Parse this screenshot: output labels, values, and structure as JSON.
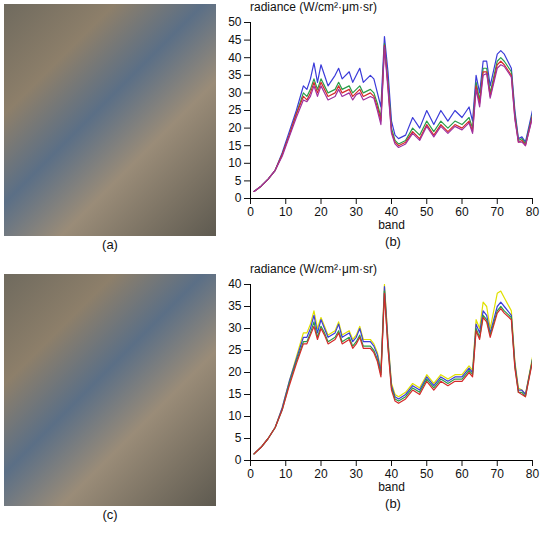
{
  "chart_data": [
    {
      "type": "line",
      "ylabel": "radiance (W/cm²·μm·sr)",
      "xlabel": "band",
      "caption": "(b)",
      "x": [
        1,
        3,
        5,
        7,
        9,
        11,
        13,
        15,
        16,
        17,
        18,
        19,
        20,
        21,
        22,
        24,
        25,
        26,
        28,
        29,
        30,
        31,
        32,
        34,
        35,
        36,
        37,
        38,
        39,
        40,
        41,
        42,
        44,
        46,
        48,
        50,
        52,
        54,
        56,
        58,
        60,
        62,
        63,
        64,
        65,
        66,
        67,
        68,
        70,
        71,
        72,
        74,
        75,
        76,
        77,
        78,
        80
      ],
      "xlim": [
        0,
        80
      ],
      "xticks": [
        0,
        10,
        20,
        30,
        40,
        50,
        60,
        70,
        80
      ],
      "ylim": [
        0,
        50
      ],
      "yticks": [
        0,
        5,
        10,
        15,
        20,
        25,
        30,
        35,
        40,
        45,
        50
      ],
      "series": [
        {
          "color": "#3b3bd9",
          "values": [
            2,
            3.5,
            5.5,
            8,
            13,
            19,
            25,
            32,
            31,
            34,
            38.5,
            33,
            38,
            35,
            32,
            35,
            37,
            34,
            36,
            33,
            35,
            37,
            33,
            35,
            34,
            30,
            26,
            46,
            36,
            22,
            18,
            17,
            18,
            23,
            20,
            25,
            21,
            25,
            22,
            25,
            23,
            26,
            22,
            35,
            30,
            39,
            39,
            32,
            41,
            42,
            41,
            37,
            25,
            17,
            17.5,
            16,
            25
          ]
        },
        {
          "color": "#2a9d4a",
          "values": [
            2,
            3.5,
            5.5,
            8,
            12.5,
            18,
            24,
            30,
            29,
            31,
            34,
            31,
            34,
            32,
            30,
            31,
            33,
            31,
            32,
            30,
            31,
            32,
            30,
            31,
            30,
            27,
            23,
            44,
            33,
            20,
            16.5,
            15.5,
            16.5,
            20,
            18,
            22,
            19,
            22,
            20,
            22,
            21,
            23,
            20,
            33,
            28,
            37,
            37,
            30,
            39,
            40,
            39,
            36,
            24,
            16.5,
            17,
            15.5,
            24
          ]
        },
        {
          "color": "#d42a2a",
          "values": [
            2,
            3.5,
            5.5,
            8,
            12.5,
            18,
            24,
            29,
            28,
            30,
            33,
            30,
            33,
            31,
            29,
            30,
            32,
            30,
            31,
            29,
            30,
            31,
            29,
            30,
            29,
            26,
            22,
            43.5,
            32,
            19,
            16,
            15,
            16,
            19,
            17,
            21,
            18,
            21,
            19,
            21,
            20,
            22,
            19,
            32,
            27,
            36,
            36,
            29,
            38,
            39,
            38,
            35,
            23,
            16,
            16.5,
            15,
            23.5
          ]
        },
        {
          "color": "#a030a0",
          "values": [
            2,
            3.5,
            5.5,
            8,
            12,
            17.5,
            23,
            28,
            27.5,
            29,
            32,
            29,
            32,
            30,
            28,
            29,
            31,
            29,
            30,
            28,
            29.5,
            30,
            28,
            29,
            28.5,
            25,
            21,
            43,
            31,
            18.5,
            15.5,
            14.5,
            15.5,
            18.5,
            16.5,
            20.5,
            17.5,
            20.5,
            18.5,
            20.5,
            19.5,
            21.5,
            18.5,
            31,
            26,
            35,
            35.5,
            28.5,
            37,
            38,
            37.5,
            34.5,
            22.5,
            16,
            16,
            15,
            23
          ]
        }
      ]
    },
    {
      "type": "line",
      "ylabel": "radiance (W/cm²·μm·sr)",
      "xlabel": "band",
      "caption": "(b)",
      "x": [
        1,
        3,
        5,
        7,
        9,
        11,
        13,
        15,
        16,
        17,
        18,
        19,
        20,
        21,
        22,
        24,
        25,
        26,
        28,
        29,
        30,
        31,
        32,
        34,
        35,
        36,
        37,
        38,
        39,
        40,
        41,
        42,
        44,
        46,
        48,
        50,
        52,
        54,
        56,
        58,
        60,
        62,
        63,
        64,
        65,
        66,
        67,
        68,
        70,
        71,
        72,
        74,
        75,
        76,
        77,
        78,
        80
      ],
      "xlim": [
        0,
        80
      ],
      "xticks": [
        0,
        10,
        20,
        30,
        40,
        50,
        60,
        70,
        80
      ],
      "ylim": [
        0,
        40
      ],
      "yticks": [
        0,
        5,
        10,
        15,
        20,
        25,
        30,
        35,
        40
      ],
      "series": [
        {
          "color": "#e0e000",
          "values": [
            1.5,
            3,
            5,
            7.5,
            12,
            18,
            23.5,
            29,
            29,
            31,
            34,
            30,
            32.5,
            30.5,
            28.5,
            29.5,
            31.5,
            28.5,
            29.5,
            27.5,
            28.5,
            30.5,
            27.5,
            27.5,
            26.5,
            24.5,
            20.5,
            40,
            27.5,
            17.5,
            15,
            14.5,
            15.5,
            17.5,
            16.5,
            19.5,
            17.5,
            19.5,
            18.5,
            19.5,
            19.5,
            21.5,
            20.5,
            32,
            30,
            36,
            35,
            30,
            38,
            38.5,
            37,
            34,
            22.5,
            16.5,
            16,
            15,
            23.5
          ]
        },
        {
          "color": "#3b3bd9",
          "values": [
            1.5,
            3,
            5,
            7.5,
            12,
            18,
            23,
            28,
            28,
            30,
            33,
            29,
            32,
            30,
            28,
            29,
            31,
            28,
            29,
            27,
            28,
            30,
            27,
            27,
            26,
            24,
            20,
            39.5,
            27,
            17,
            14.5,
            14,
            15,
            17,
            16,
            19,
            17,
            19,
            18,
            19,
            19,
            21,
            20,
            31,
            29,
            34,
            33,
            29,
            35,
            36,
            35,
            33,
            22,
            16,
            16,
            15,
            23
          ]
        },
        {
          "color": "#2a9d4a",
          "values": [
            1.5,
            3,
            5,
            7.5,
            11.5,
            17.5,
            22.5,
            27,
            27,
            29,
            31.5,
            28,
            30.5,
            29,
            27,
            28,
            29.5,
            27,
            28,
            26,
            27,
            28.5,
            26,
            26,
            25,
            23,
            19.5,
            38.5,
            26,
            16.5,
            14,
            13.5,
            14.5,
            16.5,
            15.5,
            18.5,
            16.5,
            18.5,
            17.5,
            18.5,
            18.5,
            20.5,
            19.5,
            30,
            28,
            33,
            32,
            28.5,
            34,
            35,
            34,
            32.5,
            21.5,
            15.5,
            15.5,
            14.5,
            23
          ]
        },
        {
          "color": "#d42a2a",
          "values": [
            1.5,
            3,
            5,
            7.5,
            11.5,
            17,
            22,
            26.5,
            26.5,
            28.5,
            30.5,
            27.5,
            30,
            28.5,
            26.5,
            27.5,
            29,
            26.5,
            27.5,
            25.5,
            26.5,
            28,
            25.5,
            25.5,
            24.5,
            22.5,
            19,
            38,
            25.5,
            16,
            13.5,
            13,
            14,
            16,
            15,
            18,
            16,
            18,
            17,
            18,
            18,
            20,
            19,
            29.5,
            27.5,
            32.5,
            31.5,
            28,
            33.5,
            34.5,
            33.5,
            32,
            21,
            15.5,
            15,
            14.5,
            22.5
          ]
        }
      ]
    }
  ],
  "images": [
    {
      "caption": "(a)"
    },
    {
      "caption": "(c)"
    }
  ]
}
